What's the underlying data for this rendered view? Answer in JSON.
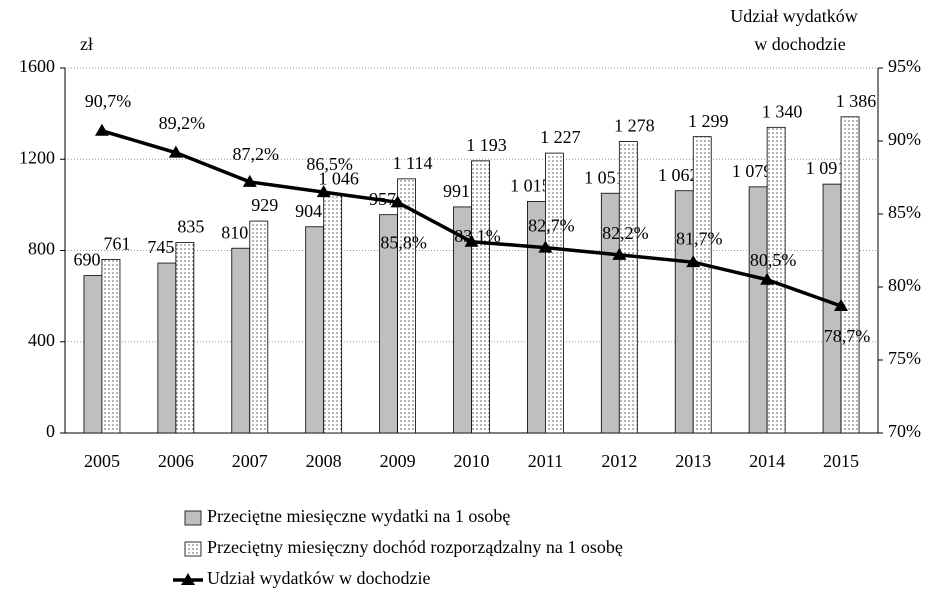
{
  "chart_data": {
    "type": "bar-line",
    "y_label": "zł",
    "y2_label": [
      "Udział wydatków",
      "w dochodzie"
    ],
    "categories": [
      "2005",
      "2006",
      "2007",
      "2008",
      "2009",
      "2010",
      "2011",
      "2012",
      "2013",
      "2014",
      "2015"
    ],
    "series": [
      {
        "name": "Przeciętne miesięczne wydatki na 1 osobę",
        "type": "bar",
        "color": "#bfbfbf",
        "values": [
          690,
          745,
          810,
          904,
          957,
          991,
          1015,
          1051,
          1062,
          1079,
          1091
        ],
        "value_labels": [
          "690",
          "745",
          "810",
          "904",
          "957",
          "991",
          "1 015",
          "1 051",
          "1 062",
          "1 079",
          "1 091"
        ]
      },
      {
        "name": "Przeciętny miesięczny dochód rozporządzalny na 1 osobę",
        "type": "bar",
        "color": "#ffffff",
        "pattern": "dots",
        "values": [
          761,
          835,
          929,
          1046,
          1114,
          1193,
          1227,
          1278,
          1299,
          1340,
          1386
        ],
        "value_labels": [
          "761",
          "835",
          "929",
          "1 046",
          "1 114",
          "1 193",
          "1 227",
          "1 278",
          "1 299",
          "1 340",
          "1 386"
        ]
      },
      {
        "name": "Udział wydatków w dochodzie",
        "type": "line",
        "axis": "y2",
        "color": "#000000",
        "values": [
          90.7,
          89.2,
          87.2,
          86.5,
          85.8,
          83.1,
          82.7,
          82.2,
          81.7,
          80.5,
          78.7
        ],
        "value_labels": [
          "90,7%",
          "89,2%",
          "87,2%",
          "86,5%",
          "85,8%",
          "83,1%",
          "82,7%",
          "82,2%",
          "81,7%",
          "80,5%",
          "78,7%"
        ]
      }
    ],
    "ylim": [
      0,
      1600
    ],
    "yticks": [
      0,
      400,
      800,
      1200,
      1600
    ],
    "y2lim": [
      70,
      95
    ],
    "y2ticks": [
      {
        "value": 70,
        "label": "70%"
      },
      {
        "value": 75,
        "label": "75%"
      },
      {
        "value": 80,
        "label": "80%"
      },
      {
        "value": 85,
        "label": "85%"
      },
      {
        "value": 90,
        "label": "90%"
      },
      {
        "value": 95,
        "label": "95%"
      }
    ],
    "grid": true
  }
}
